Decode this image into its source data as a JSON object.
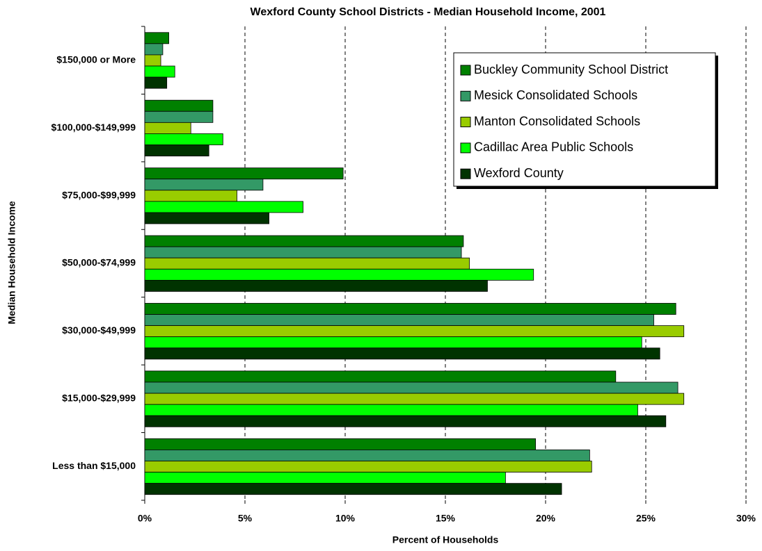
{
  "chart_data": {
    "type": "hbar",
    "title": "Wexford County School Districts - Median Household Income, 2001",
    "x_label": "Percent of Households",
    "y_label": "Median Household Income",
    "categories": [
      "$150,000 or More",
      "$100,000-$149,999",
      "$75,000-$99,999",
      "$50,000-$74,999",
      "$30,000-$49,999",
      "$15,000-$29,999",
      "Less than $15,000"
    ],
    "series": [
      {
        "name": "Buckley Community School District",
        "color": "#008000",
        "values": [
          1.2,
          3.4,
          9.9,
          15.9,
          26.5,
          23.5,
          19.5
        ]
      },
      {
        "name": "Mesick Consolidated Schools",
        "color": "#339966",
        "values": [
          0.9,
          3.4,
          5.9,
          15.8,
          25.4,
          26.6,
          22.2
        ]
      },
      {
        "name": "Manton Consolidated Schools",
        "color": "#99cc00",
        "values": [
          0.8,
          2.3,
          4.6,
          16.2,
          26.9,
          26.9,
          22.3
        ]
      },
      {
        "name": "Cadillac Area Public Schools",
        "color": "#00ff00",
        "values": [
          1.5,
          3.9,
          7.9,
          19.4,
          24.8,
          24.6,
          18.0
        ]
      },
      {
        "name": "Wexford County",
        "color": "#003300",
        "values": [
          1.1,
          3.2,
          6.2,
          17.1,
          25.7,
          26.0,
          20.8
        ]
      }
    ],
    "xlim": [
      0,
      30
    ],
    "xticks": [
      {
        "value": 0,
        "label": "0%"
      },
      {
        "value": 5,
        "label": "5%"
      },
      {
        "value": 10,
        "label": "10%"
      },
      {
        "value": 15,
        "label": "15%"
      },
      {
        "value": 20,
        "label": "20%"
      },
      {
        "value": 25,
        "label": "25%"
      },
      {
        "value": 30,
        "label": "30%"
      }
    ],
    "grid": true,
    "legend": "upper right"
  }
}
